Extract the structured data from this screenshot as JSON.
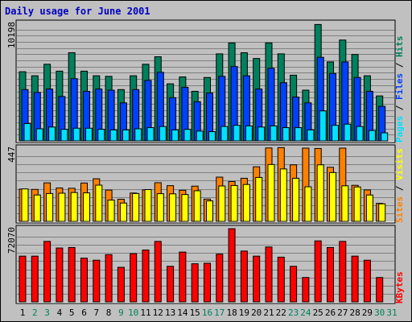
{
  "title": "Daily usage for June 2001",
  "colors": {
    "background": "#c0c0c0",
    "panel": "#c0c0c0",
    "title": "#0000c0",
    "hits": "#00805c",
    "files": "#0040ff",
    "pages": "#00e0ff",
    "visits": "#ffff00",
    "sites": "#ff8000",
    "kbytes": "#ff0000",
    "weekday_text": "#000000",
    "weekend_text": "#00805c"
  },
  "legends": {
    "hits_files_pages": [
      {
        "text": "Pages",
        "color": "#00e0ff"
      },
      {
        "text": " / ",
        "color": "#000000"
      },
      {
        "text": "Files",
        "color": "#0040ff"
      },
      {
        "text": " / ",
        "color": "#000000"
      },
      {
        "text": "Hits",
        "color": "#00805c"
      }
    ],
    "sites_visits": [
      {
        "text": "Sites",
        "color": "#ff8000"
      },
      {
        "text": " / ",
        "color": "#000000"
      },
      {
        "text": "Visits",
        "color": "#ffff00"
      }
    ],
    "kbytes": [
      {
        "text": "KBytes",
        "color": "#ff0000"
      }
    ]
  },
  "chart_data": [
    {
      "type": "bar",
      "panel": "hits_files_pages",
      "ymax_label": "10198",
      "ylim": [
        0,
        10198
      ],
      "categories": [
        "1",
        "2",
        "3",
        "4",
        "5",
        "6",
        "7",
        "8",
        "9",
        "10",
        "11",
        "12",
        "13",
        "14",
        "15",
        "16",
        "17",
        "18",
        "19",
        "20",
        "21",
        "22",
        "23",
        "24",
        "25",
        "26",
        "27",
        "28",
        "29",
        "30",
        "31"
      ],
      "weekend": [
        2,
        3,
        9,
        10,
        16,
        17,
        23,
        24,
        30,
        31
      ],
      "series": [
        {
          "name": "Hits",
          "values": [
            6000,
            5650,
            6650,
            6050,
            7650,
            6050,
            5650,
            5600,
            4450,
            5650,
            6650,
            7300,
            4950,
            5550,
            4300,
            5500,
            7550,
            8500,
            7650,
            7150,
            8500,
            7550,
            5700,
            4400,
            10100,
            6850,
            8750,
            7500,
            5650,
            3900,
            0
          ]
        },
        {
          "name": "Files",
          "values": [
            4450,
            4200,
            4500,
            3850,
            5400,
            4300,
            4500,
            4400,
            3300,
            4450,
            5250,
            5950,
            3750,
            4650,
            3400,
            4150,
            5600,
            6450,
            5650,
            4500,
            6300,
            5050,
            3800,
            3300,
            7250,
            5850,
            6850,
            5500,
            4300,
            3000,
            0
          ]
        },
        {
          "name": "Pages",
          "values": [
            1500,
            1050,
            1200,
            1000,
            1100,
            1100,
            1000,
            950,
            950,
            1050,
            1150,
            1250,
            950,
            1000,
            850,
            800,
            1250,
            1350,
            1300,
            1200,
            1300,
            1150,
            1150,
            950,
            2600,
            1350,
            1450,
            1250,
            900,
            700,
            0
          ]
        }
      ]
    },
    {
      "type": "bar",
      "panel": "sites_visits",
      "ymax_label": "447",
      "ylim": [
        0,
        447
      ],
      "categories": [
        "1",
        "2",
        "3",
        "4",
        "5",
        "6",
        "7",
        "8",
        "9",
        "10",
        "11",
        "12",
        "13",
        "14",
        "15",
        "16",
        "17",
        "18",
        "19",
        "20",
        "21",
        "22",
        "23",
        "24",
        "25",
        "26",
        "27",
        "28",
        "29",
        "30",
        "31"
      ],
      "weekend": [
        2,
        3,
        9,
        10,
        16,
        17,
        23,
        24,
        30,
        31
      ],
      "series": [
        {
          "name": "Sites",
          "values": [
            197,
            195,
            235,
            204,
            202,
            234,
            260,
            191,
            135,
            173,
            192,
            236,
            218,
            190,
            215,
            136,
            270,
            243,
            263,
            333,
            448,
            450,
            345,
            447,
            445,
            330,
            447,
            220,
            192,
            110,
            0
          ]
        },
        {
          "name": "Visits",
          "values": [
            198,
            161,
            170,
            172,
            176,
            174,
            221,
            130,
            112,
            170,
            194,
            169,
            168,
            164,
            187,
            125,
            216,
            219,
            225,
            268,
            347,
            320,
            263,
            211,
            345,
            298,
            217,
            210,
            161,
            107,
            0
          ]
        }
      ]
    },
    {
      "type": "bar",
      "panel": "kbytes",
      "ymax_label": "72070",
      "ylim": [
        0,
        72070
      ],
      "categories": [
        "1",
        "2",
        "3",
        "4",
        "5",
        "6",
        "7",
        "8",
        "9",
        "10",
        "11",
        "12",
        "13",
        "14",
        "15",
        "16",
        "17",
        "18",
        "19",
        "20",
        "21",
        "22",
        "23",
        "24",
        "25",
        "26",
        "27",
        "28",
        "29",
        "30",
        "31"
      ],
      "weekend": [
        2,
        3,
        9,
        10,
        16,
        17,
        23,
        24,
        30,
        31
      ],
      "series": [
        {
          "name": "KBytes",
          "values": [
            45000,
            45000,
            59500,
            53000,
            53500,
            43000,
            41000,
            46500,
            34000,
            47500,
            51000,
            59500,
            35000,
            49000,
            37500,
            38000,
            47000,
            72000,
            50000,
            45000,
            54000,
            44000,
            35000,
            24000,
            60000,
            53500,
            59500,
            45000,
            41000,
            24000,
            0
          ]
        }
      ]
    }
  ]
}
